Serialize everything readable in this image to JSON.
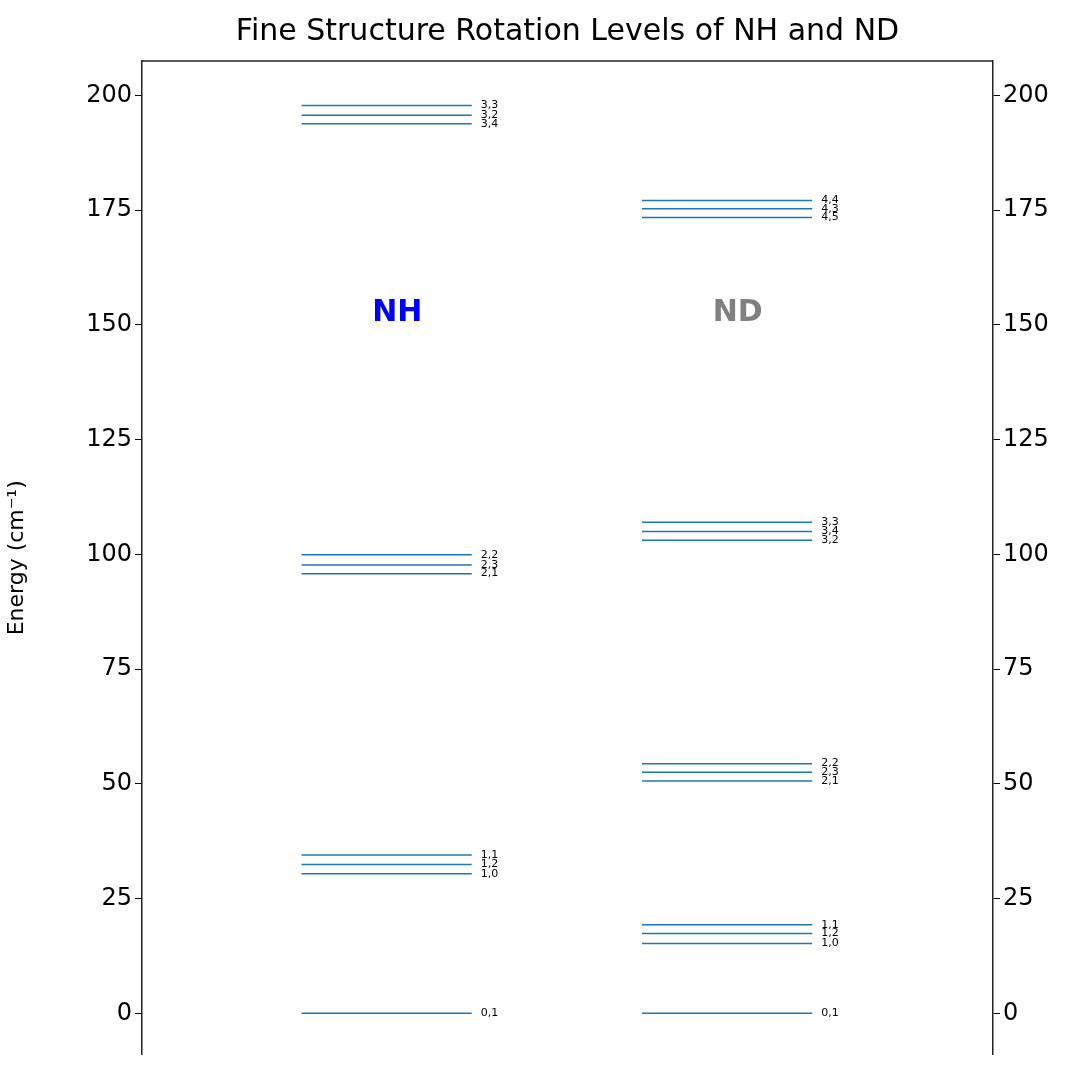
{
  "chart_data": {
    "type": "line",
    "title": "Fine Structure Rotation Levels of NH and ND",
    "ylabel": "Energy (cm⁻¹)",
    "categories": [
      null,
      null,
      null,
      null,
      null,
      null,
      null,
      null,
      null,
      null,
      null,
      null,
      null,
      null,
      null,
      null,
      null,
      null,
      null,
      null,
      null,
      null,
      null,
      null,
      null,
      null,
      null,
      null,
      null,
      null,
      null,
      null,
      null,
      null,
      null,
      null,
      null,
      null,
      null,
      null
    ],
    "ylim": [
      -9,
      207.5
    ],
    "yticks": [
      0,
      25,
      50,
      75,
      100,
      125,
      150,
      175,
      200
    ],
    "y2lim": [
      -9,
      207.5
    ],
    "y2ticks": [
      0,
      25,
      50,
      75,
      100,
      125,
      150,
      175,
      200
    ],
    "grid": false,
    "legend": false,
    "marker": "none",
    "line_style": "solid",
    "annotations": [
      "NH",
      "ND"
    ],
    "series": [
      {
        "name": "3,3",
        "color": "#1f77b4",
        "values": [
          null,
          null,
          null,
          null,
          null,
          null,
          null,
          197.8,
          197.8,
          197.8,
          197.8,
          197.8,
          197.8,
          197.8,
          197.8,
          197.8,
          null,
          null,
          null,
          null,
          null,
          null,
          null,
          null,
          null,
          null,
          null,
          null,
          null,
          null,
          null,
          null,
          null,
          null,
          null,
          null,
          null,
          null,
          null,
          null
        ]
      },
      {
        "name": "3,2",
        "color": "#1f77b4",
        "values": [
          null,
          null,
          null,
          null,
          null,
          null,
          null,
          195.7,
          195.7,
          195.7,
          195.7,
          195.7,
          195.7,
          195.7,
          195.7,
          195.7,
          null,
          null,
          null,
          null,
          null,
          null,
          null,
          null,
          null,
          null,
          null,
          null,
          null,
          null,
          null,
          null,
          null,
          null,
          null,
          null,
          null,
          null,
          null,
          null
        ]
      },
      {
        "name": "3,4",
        "color": "#1f77b4",
        "values": [
          null,
          null,
          null,
          null,
          null,
          null,
          null,
          193.8,
          193.8,
          193.8,
          193.8,
          193.8,
          193.8,
          193.8,
          193.8,
          193.8,
          null,
          null,
          null,
          null,
          null,
          null,
          null,
          null,
          null,
          null,
          null,
          null,
          null,
          null,
          null,
          null,
          null,
          null,
          null,
          null,
          null,
          null,
          null,
          null
        ]
      },
      {
        "name": "2,2",
        "color": "#1f77b4",
        "values": [
          null,
          null,
          null,
          null,
          null,
          null,
          null,
          99.9,
          99.9,
          99.9,
          99.9,
          99.9,
          99.9,
          99.9,
          99.9,
          99.9,
          null,
          null,
          null,
          null,
          null,
          null,
          null,
          null,
          null,
          null,
          null,
          null,
          null,
          null,
          null,
          null,
          null,
          null,
          null,
          null,
          null,
          null,
          null,
          null
        ]
      },
      {
        "name": "2,3",
        "color": "#1f77b4",
        "values": [
          null,
          null,
          null,
          null,
          null,
          null,
          null,
          97.7,
          97.7,
          97.7,
          97.7,
          97.7,
          97.7,
          97.7,
          97.7,
          97.7,
          null,
          null,
          null,
          null,
          null,
          null,
          null,
          null,
          null,
          null,
          null,
          null,
          null,
          null,
          null,
          null,
          null,
          null,
          null,
          null,
          null,
          null,
          null,
          null
        ]
      },
      {
        "name": "2,1",
        "color": "#1f77b4",
        "values": [
          null,
          null,
          null,
          null,
          null,
          null,
          null,
          95.8,
          95.8,
          95.8,
          95.8,
          95.8,
          95.8,
          95.8,
          95.8,
          95.8,
          null,
          null,
          null,
          null,
          null,
          null,
          null,
          null,
          null,
          null,
          null,
          null,
          null,
          null,
          null,
          null,
          null,
          null,
          null,
          null,
          null,
          null,
          null,
          null
        ]
      },
      {
        "name": "1,1",
        "color": "#1f77b4",
        "values": [
          null,
          null,
          null,
          null,
          null,
          null,
          null,
          34.5,
          34.5,
          34.5,
          34.5,
          34.5,
          34.5,
          34.5,
          34.5,
          34.5,
          null,
          null,
          null,
          null,
          null,
          null,
          null,
          null,
          null,
          null,
          null,
          null,
          null,
          null,
          null,
          null,
          null,
          null,
          null,
          null,
          null,
          null,
          null,
          null
        ]
      },
      {
        "name": "1,2",
        "color": "#1f77b4",
        "values": [
          null,
          null,
          null,
          null,
          null,
          null,
          null,
          32.4,
          32.4,
          32.4,
          32.4,
          32.4,
          32.4,
          32.4,
          32.4,
          32.4,
          null,
          null,
          null,
          null,
          null,
          null,
          null,
          null,
          null,
          null,
          null,
          null,
          null,
          null,
          null,
          null,
          null,
          null,
          null,
          null,
          null,
          null,
          null,
          null
        ]
      },
      {
        "name": "1,0",
        "color": "#1f77b4",
        "values": [
          null,
          null,
          null,
          null,
          null,
          null,
          null,
          30.4,
          30.4,
          30.4,
          30.4,
          30.4,
          30.4,
          30.4,
          30.4,
          30.4,
          null,
          null,
          null,
          null,
          null,
          null,
          null,
          null,
          null,
          null,
          null,
          null,
          null,
          null,
          null,
          null,
          null,
          null,
          null,
          null,
          null,
          null,
          null,
          null
        ]
      },
      {
        "name": "0,1",
        "color": "#1f77b4",
        "values": [
          null,
          null,
          null,
          null,
          null,
          null,
          null,
          0,
          0,
          0,
          0,
          0,
          0,
          0,
          0,
          0,
          null,
          null,
          null,
          null,
          null,
          null,
          null,
          null,
          null,
          null,
          null,
          null,
          null,
          null,
          null,
          null,
          null,
          null,
          null,
          null,
          null,
          null,
          null,
          null
        ]
      },
      {
        "name": "4,4",
        "color": "#1f77b4",
        "values": [
          null,
          null,
          null,
          null,
          null,
          null,
          null,
          null,
          null,
          null,
          null,
          null,
          null,
          null,
          null,
          null,
          null,
          null,
          null,
          null,
          null,
          null,
          null,
          177.1,
          177.1,
          177.1,
          177.1,
          177.1,
          177.1,
          177.1,
          177.1,
          177.1,
          null,
          null,
          null,
          null,
          null,
          null,
          null,
          null
        ]
      },
      {
        "name": "4,3",
        "color": "#1f77b4",
        "values": [
          null,
          null,
          null,
          null,
          null,
          null,
          null,
          null,
          null,
          null,
          null,
          null,
          null,
          null,
          null,
          null,
          null,
          null,
          null,
          null,
          null,
          null,
          null,
          175.3,
          175.3,
          175.3,
          175.3,
          175.3,
          175.3,
          175.3,
          175.3,
          175.3,
          null,
          null,
          null,
          null,
          null,
          null,
          null,
          null
        ]
      },
      {
        "name": "4,5",
        "color": "#1f77b4",
        "values": [
          null,
          null,
          null,
          null,
          null,
          null,
          null,
          null,
          null,
          null,
          null,
          null,
          null,
          null,
          null,
          null,
          null,
          null,
          null,
          null,
          null,
          null,
          null,
          173.4,
          173.4,
          173.4,
          173.4,
          173.4,
          173.4,
          173.4,
          173.4,
          173.4,
          null,
          null,
          null,
          null,
          null,
          null,
          null,
          null
        ]
      },
      {
        "name": "3,3",
        "color": "#1f77b4",
        "values": [
          null,
          null,
          null,
          null,
          null,
          null,
          null,
          null,
          null,
          null,
          null,
          null,
          null,
          null,
          null,
          null,
          null,
          null,
          null,
          null,
          null,
          null,
          null,
          107.0,
          107.0,
          107.0,
          107.0,
          107.0,
          107.0,
          107.0,
          107.0,
          107.0,
          null,
          null,
          null,
          null,
          null,
          null,
          null,
          null
        ]
      },
      {
        "name": "3,4",
        "color": "#1f77b4",
        "values": [
          null,
          null,
          null,
          null,
          null,
          null,
          null,
          null,
          null,
          null,
          null,
          null,
          null,
          null,
          null,
          null,
          null,
          null,
          null,
          null,
          null,
          null,
          null,
          105.0,
          105.0,
          105.0,
          105.0,
          105.0,
          105.0,
          105.0,
          105.0,
          105.0,
          null,
          null,
          null,
          null,
          null,
          null,
          null,
          null
        ]
      },
      {
        "name": "3,2",
        "color": "#1f77b4",
        "values": [
          null,
          null,
          null,
          null,
          null,
          null,
          null,
          null,
          null,
          null,
          null,
          null,
          null,
          null,
          null,
          null,
          null,
          null,
          null,
          null,
          null,
          null,
          null,
          103.1,
          103.1,
          103.1,
          103.1,
          103.1,
          103.1,
          103.1,
          103.1,
          103.1,
          null,
          null,
          null,
          null,
          null,
          null,
          null,
          null
        ]
      },
      {
        "name": "2,2",
        "color": "#1f77b4",
        "values": [
          null,
          null,
          null,
          null,
          null,
          null,
          null,
          null,
          null,
          null,
          null,
          null,
          null,
          null,
          null,
          null,
          null,
          null,
          null,
          null,
          null,
          null,
          null,
          54.4,
          54.4,
          54.4,
          54.4,
          54.4,
          54.4,
          54.4,
          54.4,
          54.4,
          null,
          null,
          null,
          null,
          null,
          null,
          null,
          null
        ]
      },
      {
        "name": "2,3",
        "color": "#1f77b4",
        "values": [
          null,
          null,
          null,
          null,
          null,
          null,
          null,
          null,
          null,
          null,
          null,
          null,
          null,
          null,
          null,
          null,
          null,
          null,
          null,
          null,
          null,
          null,
          null,
          52.5,
          52.5,
          52.5,
          52.5,
          52.5,
          52.5,
          52.5,
          52.5,
          52.5,
          null,
          null,
          null,
          null,
          null,
          null,
          null,
          null
        ]
      },
      {
        "name": "2,1",
        "color": "#1f77b4",
        "values": [
          null,
          null,
          null,
          null,
          null,
          null,
          null,
          null,
          null,
          null,
          null,
          null,
          null,
          null,
          null,
          null,
          null,
          null,
          null,
          null,
          null,
          null,
          null,
          50.6,
          50.6,
          50.6,
          50.6,
          50.6,
          50.6,
          50.6,
          50.6,
          50.6,
          null,
          null,
          null,
          null,
          null,
          null,
          null,
          null
        ]
      },
      {
        "name": "1,1",
        "color": "#1f77b4",
        "values": [
          null,
          null,
          null,
          null,
          null,
          null,
          null,
          null,
          null,
          null,
          null,
          null,
          null,
          null,
          null,
          null,
          null,
          null,
          null,
          null,
          null,
          null,
          null,
          19.3,
          19.3,
          19.3,
          19.3,
          19.3,
          19.3,
          19.3,
          19.3,
          19.3,
          null,
          null,
          null,
          null,
          null,
          null,
          null,
          null
        ]
      },
      {
        "name": "1,2",
        "color": "#1f77b4",
        "values": [
          null,
          null,
          null,
          null,
          null,
          null,
          null,
          null,
          null,
          null,
          null,
          null,
          null,
          null,
          null,
          null,
          null,
          null,
          null,
          null,
          null,
          null,
          null,
          17.4,
          17.4,
          17.4,
          17.4,
          17.4,
          17.4,
          17.4,
          17.4,
          17.4,
          null,
          null,
          null,
          null,
          null,
          null,
          null,
          null
        ]
      },
      {
        "name": "1,0",
        "color": "#1f77b4",
        "values": [
          null,
          null,
          null,
          null,
          null,
          null,
          null,
          null,
          null,
          null,
          null,
          null,
          null,
          null,
          null,
          null,
          null,
          null,
          null,
          null,
          null,
          null,
          null,
          15.2,
          15.2,
          15.2,
          15.2,
          15.2,
          15.2,
          15.2,
          15.2,
          15.2,
          null,
          null,
          null,
          null,
          null,
          null,
          null,
          null
        ]
      },
      {
        "name": "0,1",
        "color": "#1f77b4",
        "values": [
          null,
          null,
          null,
          null,
          null,
          null,
          null,
          null,
          null,
          null,
          null,
          null,
          null,
          null,
          null,
          null,
          null,
          null,
          null,
          null,
          null,
          null,
          null,
          0,
          0,
          0,
          0,
          0,
          0,
          0,
          0,
          0,
          null,
          null,
          null,
          null,
          null,
          null,
          null,
          null
        ]
      }
    ]
  }
}
